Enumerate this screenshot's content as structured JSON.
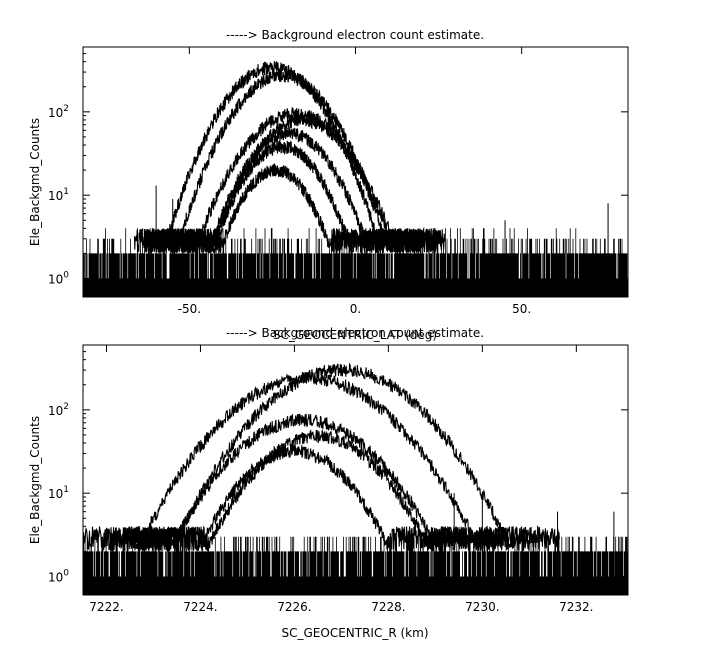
{
  "chart_data": [
    {
      "type": "line",
      "title": "-----> Background electron count estimate.",
      "xlabel": "SC_GEOCENTRIC_LAT (deg)",
      "ylabel": "Ele_Backgmd_Counts",
      "xlim": [
        -82,
        82
      ],
      "ylim": [
        0.6,
        600
      ],
      "yscale": "log",
      "grid": false,
      "xticks": [
        {
          "v": -50,
          "label": "-50."
        },
        {
          "v": 0,
          "label": "0."
        },
        {
          "v": 50,
          "label": "50."
        }
      ],
      "yticks": [
        {
          "v": 1,
          "base": "10",
          "exp": "0"
        },
        {
          "v": 10,
          "base": "10",
          "exp": "1"
        },
        {
          "v": 100,
          "base": "10",
          "exp": "2"
        }
      ],
      "noise": {
        "xmin": -82,
        "xmax": 82,
        "max": 4
      },
      "spikes": [
        {
          "x": -60,
          "y": 13
        },
        {
          "x": -55,
          "y": 9
        },
        {
          "x": 76,
          "y": 8
        },
        {
          "x": 45,
          "y": 5
        }
      ],
      "series": [
        {
          "center": -25,
          "width": 13,
          "peak": 340
        },
        {
          "center": -22,
          "width": 13,
          "peak": 270
        },
        {
          "center": -18,
          "width": 14,
          "peak": 95
        },
        {
          "center": -16,
          "width": 13,
          "peak": 80
        },
        {
          "center": -20,
          "width": 12,
          "peak": 55
        },
        {
          "center": -22,
          "width": 11,
          "peak": 38
        },
        {
          "center": -24,
          "width": 10,
          "peak": 20
        }
      ]
    },
    {
      "type": "line",
      "title": "-----> Background electron count estimate.",
      "xlabel": "SC_GEOCENTRIC_R (km)",
      "ylabel": "Ele_Backgmd_Counts",
      "xlim": [
        7221.5,
        7233.1
      ],
      "ylim": [
        0.6,
        600
      ],
      "yscale": "log",
      "grid": false,
      "xticks": [
        {
          "v": 7222,
          "label": "7222."
        },
        {
          "v": 7224,
          "label": "7224."
        },
        {
          "v": 7226,
          "label": "7226."
        },
        {
          "v": 7228,
          "label": "7228."
        },
        {
          "v": 7230,
          "label": "7230."
        },
        {
          "v": 7232,
          "label": "7232."
        }
      ],
      "yticks": [
        {
          "v": 1,
          "base": "10",
          "exp": "0"
        },
        {
          "v": 10,
          "base": "10",
          "exp": "1"
        },
        {
          "v": 100,
          "base": "10",
          "exp": "2"
        }
      ],
      "noise": {
        "xmin": 7221.5,
        "xmax": 7233.1,
        "max": 3
      },
      "spikes": [
        {
          "x": 7229.4,
          "y": 10
        },
        {
          "x": 7230.0,
          "y": 9
        },
        {
          "x": 7231.6,
          "y": 6
        },
        {
          "x": 7232.8,
          "y": 6
        }
      ],
      "series": [
        {
          "center": 7227.0,
          "width": 1.45,
          "peak": 300
        },
        {
          "center": 7226.3,
          "width": 1.5,
          "peak": 240
        },
        {
          "center": 7226.2,
          "width": 1.35,
          "peak": 75
        },
        {
          "center": 7226.5,
          "width": 1.2,
          "peak": 48
        },
        {
          "center": 7226.0,
          "width": 1.1,
          "peak": 32
        }
      ]
    }
  ]
}
